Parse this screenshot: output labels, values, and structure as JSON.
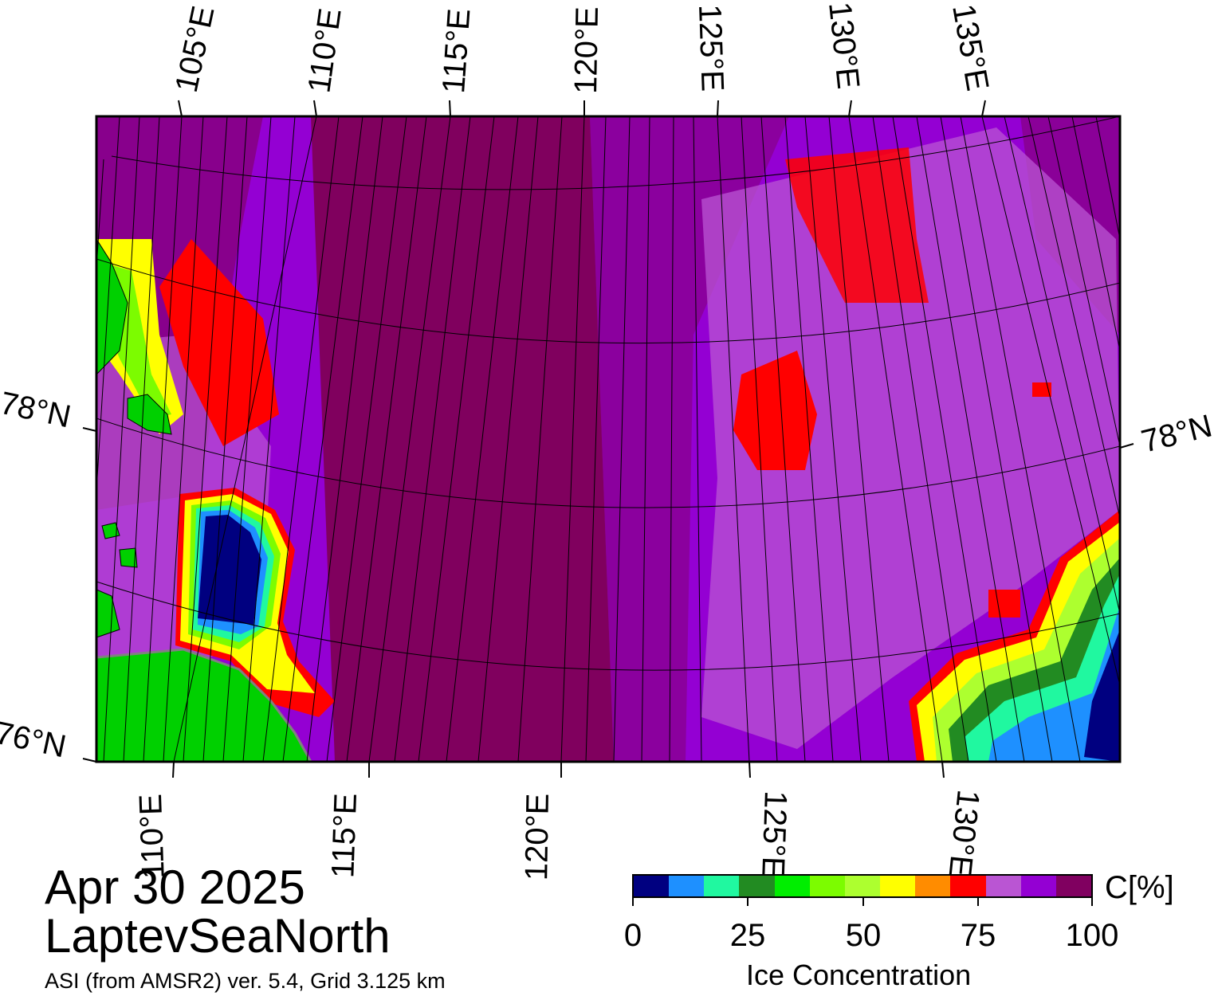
{
  "title": {
    "date": "Apr 30 2025",
    "region": "LaptevSeaNorth",
    "source": "ASI (from AMSR2) ver. 5.4,  Grid 3.125 km"
  },
  "top_longitude_labels": [
    "105°E",
    "110°E",
    "115°E",
    "120°E",
    "125°E",
    "130°E",
    "135°E"
  ],
  "bottom_longitude_labels": [
    "110°E",
    "115°E",
    "120°E",
    "125°E",
    "130°E"
  ],
  "left_latitude_labels": [
    "78°N",
    "76°N"
  ],
  "right_latitude_labels": [
    "78°N"
  ],
  "colorbar": {
    "unit": "C[%]",
    "title": "Ice Concentration",
    "tick_labels": [
      "0",
      "25",
      "50",
      "75",
      "100"
    ],
    "colors": [
      "#000080",
      "#1e90ff",
      "#20f8a0",
      "#228b22",
      "#00ee00",
      "#7cfc00",
      "#adff2f",
      "#ffff00",
      "#ff8c00",
      "#ff0000",
      "#ba55d3",
      "#9400d3",
      "#800060"
    ]
  },
  "map_colors": {
    "land": "#00d000",
    "land_edge": "#808080",
    "ice_full": "#80005e",
    "ice_high": "#9400d3",
    "ice_mid": "#ba55d3",
    "open_water": "#000080"
  }
}
